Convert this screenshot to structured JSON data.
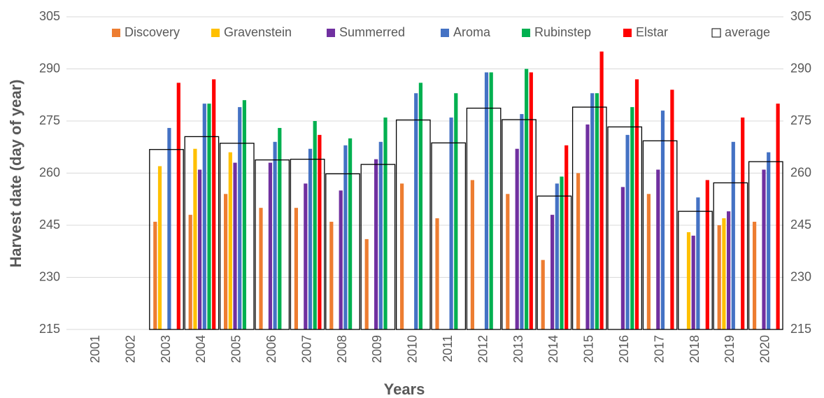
{
  "chart_data": {
    "type": "bar",
    "x_label": "Years",
    "y_label": "Harvest date (day of year)",
    "categories": [
      "2001",
      "2002",
      "2003",
      "2004",
      "2005",
      "2006",
      "2007",
      "2008",
      "2009",
      "2010",
      "2011",
      "2012",
      "2013",
      "2014",
      "2015",
      "2016",
      "2017",
      "2018",
      "2019",
      "2020"
    ],
    "series": [
      {
        "name": "Discovery",
        "color": "#ed7d31",
        "values": [
          null,
          null,
          246,
          248,
          254,
          250,
          250,
          246,
          241,
          257,
          247,
          258,
          254,
          235,
          260,
          null,
          254,
          null,
          245,
          246
        ]
      },
      {
        "name": "Gravenstein",
        "color": "#ffc000",
        "values": [
          null,
          null,
          262,
          267,
          266,
          null,
          null,
          null,
          null,
          null,
          null,
          null,
          null,
          null,
          null,
          null,
          null,
          243,
          247,
          null
        ]
      },
      {
        "name": "Summerred",
        "color": "#7030a0",
        "values": [
          null,
          null,
          null,
          261,
          263,
          263,
          257,
          255,
          264,
          null,
          null,
          null,
          267,
          248,
          274,
          256,
          261,
          242,
          249,
          261
        ]
      },
      {
        "name": "Aroma",
        "color": "#4472c4",
        "values": [
          null,
          null,
          273,
          280,
          279,
          269,
          267,
          268,
          269,
          283,
          276,
          289,
          277,
          257,
          283,
          271,
          278,
          253,
          269,
          266
        ]
      },
      {
        "name": "Rubinstep",
        "color": "#00b050",
        "values": [
          null,
          null,
          null,
          280,
          281,
          273,
          275,
          270,
          276,
          286,
          283,
          289,
          290,
          259,
          283,
          279,
          null,
          null,
          null,
          null
        ]
      },
      {
        "name": "Elstar",
        "color": "#ff0000",
        "values": [
          null,
          null,
          286,
          287,
          null,
          null,
          271,
          null,
          null,
          null,
          null,
          null,
          289,
          268,
          295,
          287,
          284,
          258,
          276,
          280
        ]
      },
      {
        "name": "average",
        "color": "#000000",
        "values": [
          null,
          null,
          266.8,
          270.5,
          268.6,
          263.8,
          264,
          259.8,
          262.5,
          275.3,
          268.7,
          278.7,
          275.4,
          253.4,
          279,
          273.3,
          269.3,
          249,
          257.2,
          263.3
        ]
      }
    ],
    "ylim": [
      215,
      305
    ],
    "yticks": [
      215,
      230,
      245,
      260,
      275,
      290,
      305
    ],
    "y2lim": [
      215,
      305
    ],
    "y2ticks": [
      215,
      230,
      245,
      260,
      275,
      290,
      305
    ],
    "grid": true,
    "legend": "top"
  }
}
